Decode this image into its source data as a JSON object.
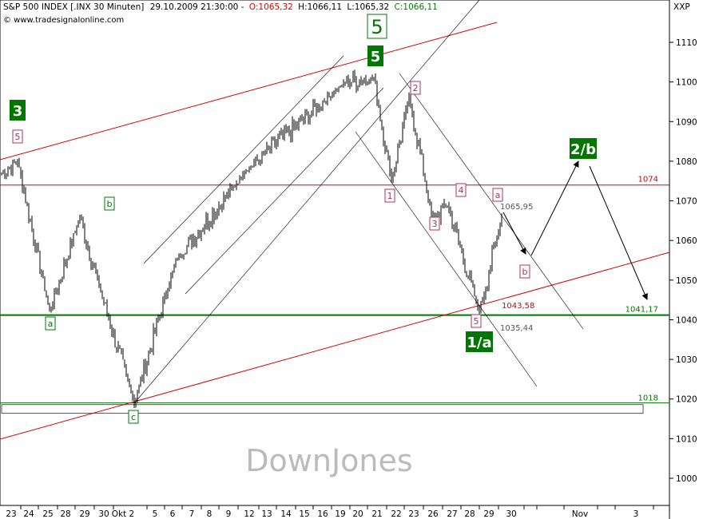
{
  "header": {
    "symbol": "S&P 500 INDEX [.INX  30 Minuten]",
    "datetime": "29.10.2009 21:30:00 -",
    "o": "O:1065,32",
    "h": "H:1066,11",
    "l": "L:1065,32",
    "c": "C:1066,11",
    "source": "© www.tradesignalonline.com",
    "corner": "XXP"
  },
  "watermark": "DownJones",
  "colors": {
    "price": "#000000",
    "red_line": "#e00000",
    "green": "#007700",
    "pink": "#b03060",
    "axis": "#000000",
    "grid_text": "#008000"
  },
  "chart_data": {
    "type": "bar",
    "title": "S&P 500 INDEX [.INX  30 Minuten]",
    "ylim": [
      995,
      1117
    ],
    "y_ticks": [
      "1110",
      "1100",
      "1090",
      "1080",
      "1070",
      "1060",
      "1050",
      "1040",
      "1030",
      "1020",
      "1010",
      "1000"
    ],
    "x_ticks": [
      "23",
      "24",
      "25",
      "28",
      "29",
      "30",
      "Okt 2",
      "5",
      "6",
      "7",
      "8",
      "9",
      "12",
      "13",
      "14",
      "15",
      "16",
      "19",
      "20",
      "21",
      "22",
      "23",
      "26",
      "27",
      "28",
      "29",
      "30",
      "Nov",
      "3"
    ],
    "levels": [
      {
        "label": "1074",
        "value": 1074,
        "color": "red"
      },
      {
        "label": "1041,17",
        "value": 1041.17,
        "color": "green"
      },
      {
        "label": "1018",
        "value": 1018,
        "color": "green"
      }
    ],
    "price_labels": [
      "1065,95",
      "1043,58",
      "1035,44"
    ],
    "wave_labels": [
      "3",
      "5",
      "a",
      "b",
      "c",
      "5",
      "5",
      "1",
      "2",
      "3",
      "4",
      "5",
      "a",
      "b",
      "1/a",
      "2/b"
    ],
    "pivots": [
      {
        "date": "23 Sep",
        "value": 1077
      },
      {
        "date": "24 Sep",
        "value": 1080
      },
      {
        "date": "25 Sep",
        "value": 1042
      },
      {
        "date": "28 Sep",
        "value": 1066
      },
      {
        "date": "30 Sep",
        "value": 1047
      },
      {
        "date": "2 Okt",
        "value": 1019
      },
      {
        "date": "6 Okt",
        "value": 1055
      },
      {
        "date": "12 Okt",
        "value": 1078
      },
      {
        "date": "19 Okt",
        "value": 1100
      },
      {
        "date": "21 Okt",
        "value": 1101
      },
      {
        "date": "22 Okt",
        "value": 1075
      },
      {
        "date": "23 Okt",
        "value": 1096
      },
      {
        "date": "26 Okt",
        "value": 1065
      },
      {
        "date": "27 Okt",
        "value": 1069
      },
      {
        "date": "28 Okt",
        "value": 1042
      },
      {
        "date": "29 Okt",
        "value": 1066
      }
    ]
  }
}
